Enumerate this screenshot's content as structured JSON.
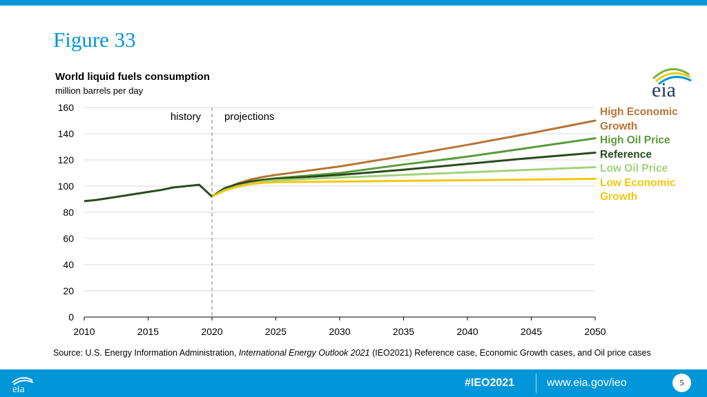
{
  "slide": {
    "title": "Figure 33",
    "hashtag": "#IEO2021",
    "url": "www.eia.gov/ieo",
    "page_number": "5",
    "source_prefix": "Source:  U.S. Energy Information Administration, ",
    "source_italic": "International Energy Outlook 2021",
    "source_suffix": " (IEO2021) Reference case, Economic Growth cases, and Oil price cases"
  },
  "logo": {
    "text": "eia",
    "icon": "eia-logo-icon"
  },
  "colors": {
    "brand_blue": "#0096D7",
    "high_economic": "#B87333",
    "high_oil": "#5B9A3C",
    "reference": "#2A4A1E",
    "low_oil": "#A3D17C",
    "low_economic": "#F2C80F",
    "grid": "#D9D9D9",
    "divider": "#A6A6A6"
  },
  "chart_data": {
    "type": "line",
    "title": "World liquid fuels consumption",
    "subtitle": "million barrels per day",
    "xlabel": "",
    "ylabel": "",
    "xlim": [
      2010,
      2050
    ],
    "ylim": [
      0,
      160
    ],
    "x_ticks": [
      2010,
      2015,
      2020,
      2025,
      2030,
      2035,
      2040,
      2045,
      2050
    ],
    "y_ticks": [
      0,
      20,
      40,
      60,
      80,
      100,
      120,
      140,
      160
    ],
    "grid": true,
    "divider_year": 2020,
    "annotations": {
      "left": "history",
      "right": "projections"
    },
    "history": {
      "x": [
        2010,
        2011,
        2012,
        2013,
        2014,
        2015,
        2016,
        2017,
        2018,
        2019,
        2020
      ],
      "values": [
        88.5,
        89.5,
        91,
        92.5,
        94,
        95.5,
        97,
        99,
        100,
        101,
        92
      ]
    },
    "series": [
      {
        "name": "High Economic Growth",
        "color": "#B87333",
        "x": [
          2020,
          2021,
          2022,
          2023,
          2024,
          2025,
          2030,
          2035,
          2040,
          2045,
          2050
        ],
        "values": [
          92,
          98,
          102,
          105,
          107,
          108.5,
          115,
          123,
          131.5,
          140.5,
          150
        ]
      },
      {
        "name": "High Oil Price",
        "color": "#5B9A3C",
        "x": [
          2020,
          2021,
          2022,
          2023,
          2024,
          2025,
          2030,
          2035,
          2040,
          2045,
          2050
        ],
        "values": [
          92,
          98,
          101.5,
          103.5,
          105,
          106,
          110,
          116.5,
          122.5,
          129.5,
          136.5
        ]
      },
      {
        "name": "Reference",
        "color": "#2A4A1E",
        "x": [
          2020,
          2021,
          2022,
          2023,
          2024,
          2025,
          2030,
          2035,
          2040,
          2045,
          2050
        ],
        "values": [
          92,
          98.5,
          101.5,
          103.5,
          104.5,
          105.5,
          108.5,
          112.5,
          117,
          121.5,
          125.5
        ]
      },
      {
        "name": "Low Oil Price",
        "color": "#A3D17C",
        "x": [
          2020,
          2021,
          2022,
          2023,
          2024,
          2025,
          2030,
          2035,
          2040,
          2045,
          2050
        ],
        "values": [
          92,
          97,
          100,
          102,
          103.5,
          104.5,
          106.5,
          108.5,
          110.5,
          112.5,
          114.5
        ]
      },
      {
        "name": "Low Economic Growth",
        "color": "#F2C80F",
        "x": [
          2020,
          2021,
          2022,
          2023,
          2024,
          2025,
          2030,
          2035,
          2040,
          2045,
          2050
        ],
        "values": [
          92,
          96.5,
          99.5,
          101.5,
          102.5,
          103,
          103.5,
          104,
          104.5,
          105,
          105.5
        ]
      }
    ],
    "legend_position": "right",
    "legend": [
      {
        "label": "High Economic Growth",
        "color": "#B87333"
      },
      {
        "label": "High Oil Price",
        "color": "#5B9A3C"
      },
      {
        "label": "Reference",
        "color": "#2A4A1E"
      },
      {
        "label": "Low Oil Price",
        "color": "#A3D17C"
      },
      {
        "label": "Low Economic Growth",
        "color": "#F2C80F"
      }
    ]
  }
}
